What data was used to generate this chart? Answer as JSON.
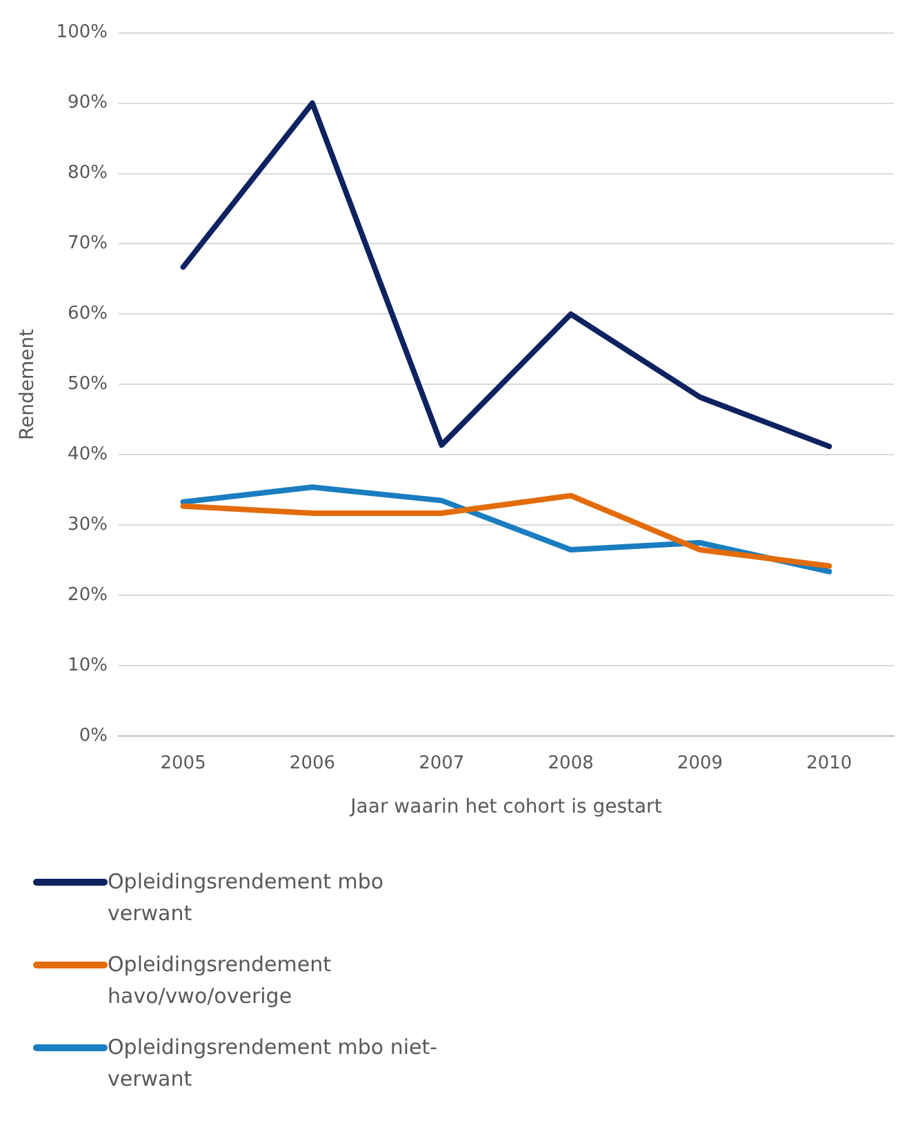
{
  "chart_data": {
    "type": "line",
    "xlabel": "Jaar waarin het cohort is gestart",
    "ylabel": "Rendement",
    "categories": [
      "2005",
      "2006",
      "2007",
      "2008",
      "2009",
      "2010"
    ],
    "series": [
      {
        "name": "Opleidingsrendement mbo verwant",
        "color": "#0d2260",
        "values": [
          66.7,
          90,
          41.4,
          60,
          48.2,
          41.2
        ]
      },
      {
        "name": "Opleidingsrendement havo/vwo/overige",
        "color": "#e36c0a",
        "values": [
          32.7,
          31.7,
          31.7,
          34.2,
          26.5,
          24.2
        ]
      },
      {
        "name": "Opleidingsrendement mbo niet-verwant",
        "color": "#1a7dc0",
        "values": [
          33.3,
          35.4,
          33.5,
          26.5,
          27.5,
          23.4
        ]
      }
    ],
    "ylim": [
      0,
      100
    ],
    "yticks": [
      {
        "value": 0,
        "label": "0%"
      },
      {
        "value": 10,
        "label": "10%"
      },
      {
        "value": 20,
        "label": "20%"
      },
      {
        "value": 30,
        "label": "30%"
      },
      {
        "value": 40,
        "label": "40%"
      },
      {
        "value": 50,
        "label": "50%"
      },
      {
        "value": 60,
        "label": "60%"
      },
      {
        "value": 70,
        "label": "70%"
      },
      {
        "value": 80,
        "label": "80%"
      },
      {
        "value": 90,
        "label": "90%"
      },
      {
        "value": 100,
        "label": "100%"
      }
    ],
    "grid": "y",
    "legend": "bottom",
    "marker": "none",
    "line_style": "solid"
  }
}
